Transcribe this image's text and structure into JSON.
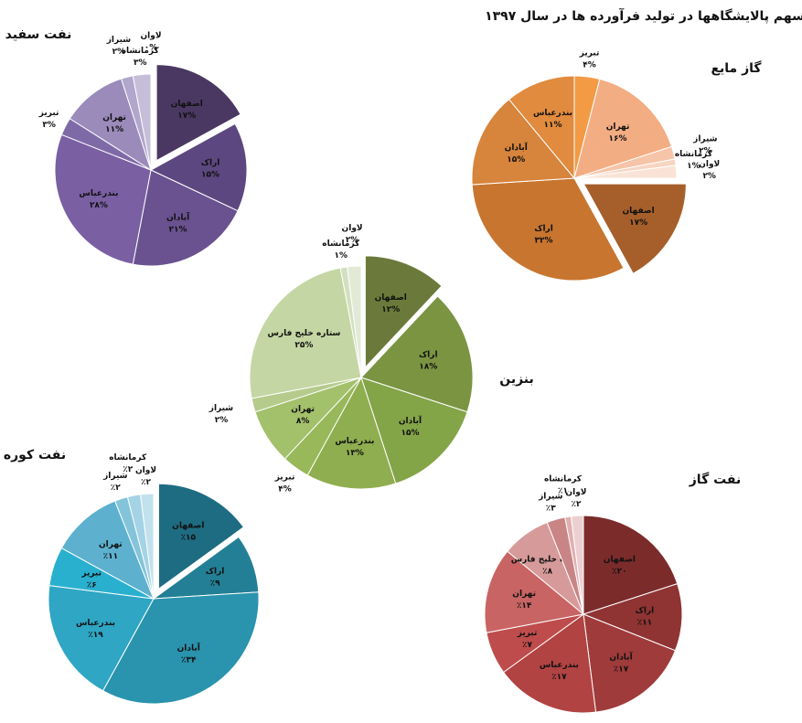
{
  "title": "سهم پالایشگاهها در تولید فرآورده ها در سال ۱۳۹۷",
  "chart_data": [
    {
      "type": "pie",
      "title": "نفت سفید",
      "categories": [
        "اصفهان",
        "اراک",
        "آبادان",
        "بندرعباس",
        "تبریز",
        "تهران",
        "شیراز",
        "کرمانشاه",
        "لاوان"
      ],
      "values": [
        17,
        15,
        21,
        28,
        3,
        11,
        2,
        3,
        0
      ],
      "value_labels": [
        "۱۷%",
        "۱۵%",
        "۲۱%",
        "۲۸%",
        "۳%",
        "۱۱%",
        "۲%",
        "۳%",
        "۰%"
      ],
      "colors": [
        "#4b3862",
        "#5d4780",
        "#6a5290",
        "#7a5fa3",
        "#7f6aa8",
        "#9a8bbb",
        "#b1a6cc",
        "#c6bed9",
        "#ddd8e8"
      ],
      "exploded_index": 0
    },
    {
      "type": "pie",
      "title": "گاز مایع",
      "categories": [
        "تبریز",
        "تهران",
        "شیراز",
        "کرمانشاه",
        "لاوان",
        "اصفهان",
        "اراک",
        "آبادان",
        "بندرعباس"
      ],
      "values": [
        4,
        16,
        2,
        1,
        2,
        17,
        32,
        15,
        11
      ],
      "value_labels": [
        "۴%",
        "۱۶%",
        "۲%",
        "۱%",
        "۲%",
        "۱۷%",
        "۳۲%",
        "۱۵%",
        "۱۱%"
      ],
      "colors": [
        "#f39a45",
        "#f3ad83",
        "#f6c4a8",
        "#f8d5c2",
        "#fae3d6",
        "#a65f2a",
        "#c8752f",
        "#d7843c",
        "#e08b3e"
      ],
      "exploded_index": 5
    },
    {
      "type": "pie",
      "title": "بنزین",
      "categories": [
        "اصفهان",
        "اراک",
        "آبادان",
        "بندرعباس",
        "تبریز",
        "تهران",
        "شیراز",
        "ستاره خلیج فارس",
        "کرمانشاه",
        "لاوان"
      ],
      "values": [
        12,
        18,
        15,
        13,
        4,
        8,
        2,
        25,
        1,
        2
      ],
      "value_labels": [
        "۱۲%",
        "۱۸%",
        "۱۵%",
        "۱۳%",
        "۴%",
        "۸%",
        "۲%",
        "۲۵%",
        "۱%",
        "۲%"
      ],
      "colors": [
        "#6b7a3a",
        "#7a9442",
        "#84a448",
        "#8fae4f",
        "#98b85a",
        "#a3c06b",
        "#b5cb8c",
        "#c4d6a3",
        "#d3e0bf",
        "#e2ead6"
      ],
      "exploded_index": 0
    },
    {
      "type": "pie",
      "title": "نفت کوره",
      "categories": [
        "اصفهان",
        "اراک",
        "آبادان",
        "بندرعباس",
        "تبریز",
        "تهران",
        "شیراز",
        "کرمانشاه",
        "لاوان"
      ],
      "values": [
        15,
        9,
        34,
        19,
        6,
        11,
        2,
        2,
        2
      ],
      "value_labels": [
        "٪۱۵",
        "٪۹",
        "٪۳۴",
        "٪۱۹",
        "٪۶",
        "٪۱۱",
        "٪۲",
        "٪۲",
        "٪۲"
      ],
      "colors": [
        "#1e6c82",
        "#237f95",
        "#2a93ad",
        "#2ea6c4",
        "#2ab0cf",
        "#5db1cf",
        "#84c4da",
        "#a3d3e4",
        "#c1e1ec"
      ],
      "exploded_index": 0
    },
    {
      "type": "pie",
      "title": "نفت گاز",
      "categories": [
        "اصفهان",
        "اراک",
        "آبادان",
        "بندرعباس",
        "تبریز",
        "تهران",
        "ستاره خلیج فارس",
        "شیراز",
        "کرمانشاه",
        "لاوان"
      ],
      "values": [
        20,
        11,
        17,
        17,
        7,
        14,
        8,
        3,
        1,
        2
      ],
      "value_labels": [
        "٪۲۰",
        "٪۱۱",
        "٪۱۷",
        "٪۱۷",
        "٪۷",
        "٪۱۴",
        "٪۸",
        "٪۳",
        "٪۱",
        "٪۲"
      ],
      "colors": [
        "#7c2b2b",
        "#8f3333",
        "#a03b3b",
        "#b24343",
        "#bf4c4c",
        "#c86464",
        "#d79a9a",
        "#c98585",
        "#e0b0b0",
        "#ecd0d0"
      ]
    }
  ]
}
